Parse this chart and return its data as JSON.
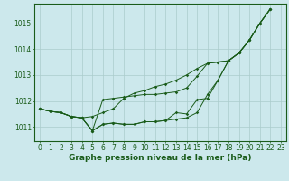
{
  "xlabel": "Graphe pression niveau de la mer (hPa)",
  "x_ticks": [
    0,
    1,
    2,
    3,
    4,
    5,
    6,
    7,
    8,
    9,
    10,
    11,
    12,
    13,
    14,
    15,
    16,
    17,
    18,
    19,
    20,
    21,
    22,
    23
  ],
  "y_ticks": [
    1011,
    1012,
    1013,
    1014,
    1015
  ],
  "ylim": [
    1010.45,
    1015.75
  ],
  "xlim": [
    -0.5,
    23.5
  ],
  "bg_color": "#cce8ec",
  "grid_color": "#aacccc",
  "line_color": "#1a5c1a",
  "s_low": [
    1011.7,
    1011.6,
    1011.55,
    1011.4,
    1011.35,
    1010.85,
    1011.1,
    1011.15,
    1011.1,
    1011.1,
    1011.2,
    1011.2,
    1011.25,
    1011.3,
    1011.35,
    1011.55,
    1012.25,
    1012.8,
    1013.55,
    1013.85,
    1014.35,
    1015.0,
    1015.55
  ],
  "s_mid1": [
    1011.7,
    1011.6,
    1011.55,
    1011.4,
    1011.35,
    1011.4,
    1011.55,
    1011.7,
    1012.1,
    1012.3,
    1012.4,
    1012.55,
    1012.65,
    1012.8,
    1013.0,
    1013.25,
    1013.45,
    1013.5,
    1013.55,
    1013.85,
    1014.35,
    1015.0,
    1015.55
  ],
  "s_mid2": [
    1011.7,
    1011.6,
    1011.55,
    1011.4,
    1011.35,
    1010.85,
    1012.05,
    1012.1,
    1012.15,
    1012.2,
    1012.25,
    1012.25,
    1012.3,
    1012.35,
    1012.5,
    1012.95,
    1013.45,
    1013.5,
    1013.55,
    1013.85,
    1014.35,
    1015.0,
    1015.55
  ],
  "s_high": [
    1011.7,
    1011.6,
    1011.55,
    1011.4,
    1011.35,
    1010.85,
    1011.1,
    1011.15,
    1011.1,
    1011.1,
    1011.2,
    1011.2,
    1011.25,
    1011.55,
    1011.5,
    1012.05,
    1012.1,
    1012.8,
    1013.55,
    1013.85,
    1014.35,
    1015.0,
    1015.55
  ],
  "tick_fontsize": 5.5,
  "label_fontsize": 6.5
}
